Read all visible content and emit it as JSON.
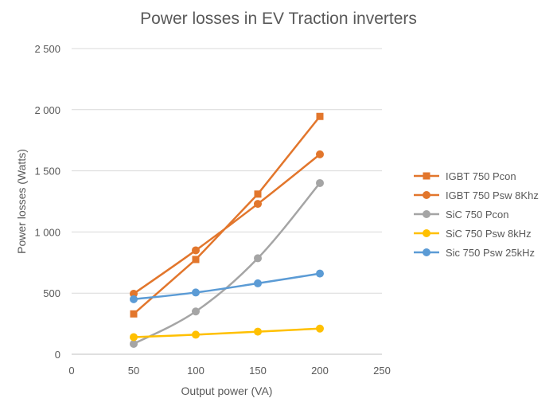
{
  "chart_data": {
    "type": "line",
    "title": "Power losses in EV Traction inverters",
    "xlabel": "Output power (VA)",
    "ylabel": "Power losses (Watts)",
    "xlim": [
      0,
      250
    ],
    "ylim": [
      0,
      2500
    ],
    "x_ticks": [
      0,
      50,
      100,
      150,
      200,
      250
    ],
    "y_ticks": [
      0,
      500,
      1000,
      1500,
      2000,
      2500
    ],
    "grid": "horizontal",
    "legend_position": "right",
    "x": [
      50,
      100,
      150,
      200
    ],
    "series": [
      {
        "name": "IGBT 750 Pcon",
        "color": "#e2762c",
        "marker": "square",
        "smooth": false,
        "values": [
          330,
          775,
          1310,
          1945
        ]
      },
      {
        "name": "IGBT 750 Psw 8Khz",
        "color": "#e2762c",
        "marker": "circle",
        "smooth": true,
        "values": [
          495,
          850,
          1230,
          1635
        ]
      },
      {
        "name": "SiC 750 Pcon",
        "color": "#a5a5a5",
        "marker": "circle",
        "smooth": true,
        "values": [
          85,
          350,
          785,
          1400
        ]
      },
      {
        "name": "SiC 750 Psw 8kHz",
        "color": "#ffc000",
        "marker": "circle",
        "smooth": true,
        "values": [
          140,
          160,
          185,
          210
        ]
      },
      {
        "name": "Sic 750 Psw 25kHz",
        "color": "#5b9bd5",
        "marker": "circle",
        "smooth": true,
        "values": [
          450,
          505,
          580,
          660
        ]
      }
    ]
  }
}
